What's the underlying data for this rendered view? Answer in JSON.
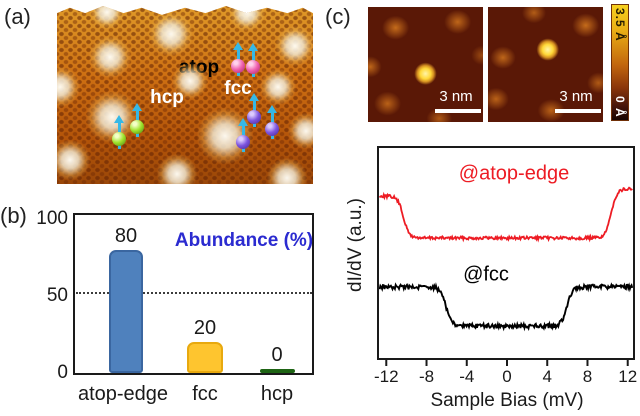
{
  "figure": {
    "panel_a": {
      "label": "(a)",
      "site_labels": {
        "atop": {
          "text": "atop",
          "color": "#000000"
        },
        "hcp": {
          "text": "hcp",
          "color": "#ffffff"
        },
        "fcc": {
          "text": "fcc",
          "color": "#ffffff"
        }
      },
      "adatom_colors": {
        "atop": "#ef5fae",
        "hcp": "#9ee32b",
        "fcc": "#7d54de"
      },
      "spin_arrow_color": "#35b8e6"
    },
    "panel_b": {
      "label": "(b)"
    },
    "panel_c": {
      "label": "(c)",
      "stm_images": [
        {
          "scale_bar": "3 nm"
        },
        {
          "scale_bar": "3 nm"
        }
      ],
      "colorbar": {
        "max_label": "3.5 Å",
        "min_label": "0 Å"
      }
    }
  },
  "chart_data": [
    {
      "type": "bar",
      "panel": "b",
      "title": "Abundance (%)",
      "title_color": "#2b2bd0",
      "categories": [
        "atop-edge",
        "fcc",
        "hcp"
      ],
      "values": [
        80,
        20,
        0
      ],
      "value_labels": [
        "80",
        "20",
        "0"
      ],
      "bar_colors": [
        "#4f81bd",
        "#fec52f",
        "#2e8b22"
      ],
      "bar_border_colors": [
        "#3a66a0",
        "#e8a90f",
        "#1e6414"
      ],
      "ylim": [
        0,
        100
      ],
      "yticks": [
        0,
        50,
        100
      ],
      "reference_line": {
        "value": 50,
        "style": "dotted"
      },
      "grid": false
    },
    {
      "type": "line",
      "panel": "c",
      "xlabel": "Sample Bias (mV)",
      "ylabel": "dI/dV (a.u.)",
      "xticks": [
        -12,
        -8,
        -4,
        0,
        4,
        8,
        12
      ],
      "xlim": [
        -12.9,
        12.7
      ],
      "legend_position": "inline",
      "series": [
        {
          "name": "@atop-edge",
          "color": "#ed1c24",
          "description": "dI/dV spectrum with flat gap floor between gap edges, plateaus outside",
          "gap_edges_mV": [
            -10.3,
            10.35
          ]
        },
        {
          "name": "@fcc",
          "color": "#000000",
          "description": "dI/dV spectrum with smaller gap, offset below the red curve",
          "gap_edges_mV": [
            -6.05,
            5.95
          ]
        }
      ]
    }
  ]
}
